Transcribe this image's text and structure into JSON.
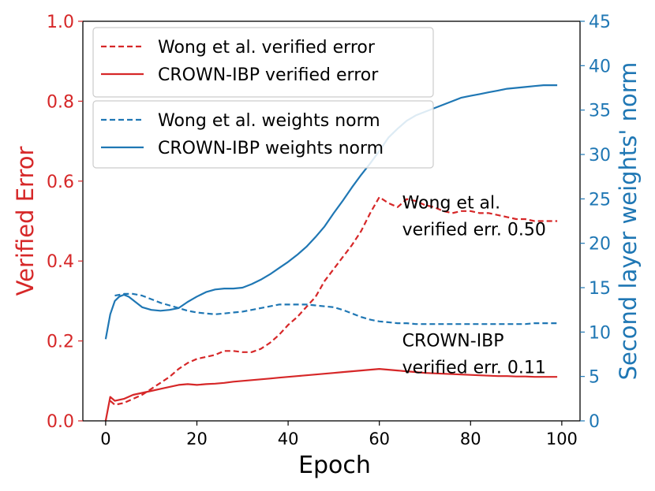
{
  "chart_data": {
    "type": "line",
    "xlabel": "Epoch",
    "ylabel_left": "Verified Error",
    "ylabel_right": "Second layer weights' norm",
    "xlim": [
      -5,
      104
    ],
    "ylim_left": [
      0.0,
      1.0
    ],
    "ylim_right": [
      0,
      45
    ],
    "xticks": [
      "0",
      "20",
      "40",
      "60",
      "80",
      "100"
    ],
    "yticks_left": [
      "0.0",
      "0.2",
      "0.4",
      "0.6",
      "0.8",
      "1.0"
    ],
    "yticks_right": [
      "0",
      "5",
      "10",
      "15",
      "20",
      "25",
      "30",
      "35",
      "40",
      "45"
    ],
    "grid": false,
    "colors": {
      "red": "#d62728",
      "blue": "#1f77b4"
    },
    "legends": [
      {
        "placement": "top-left",
        "entries": [
          "Wong et al. verified error",
          "CROWN-IBP verified error"
        ]
      },
      {
        "placement": "top-left",
        "entries": [
          "Wong et al. weights norm",
          "CROWN-IBP weights norm"
        ]
      }
    ],
    "annotations": [
      {
        "lines": [
          "Wong et al.",
          "verified err. 0.50"
        ],
        "x": 65,
        "y": 0.48
      },
      {
        "lines": [
          "CROWN-IBP",
          "verified err. 0.11"
        ],
        "x": 65,
        "y": 0.135
      }
    ],
    "series": [
      {
        "name": "Wong et al. verified error",
        "axis": "left",
        "color": "#d62728",
        "style": "dashed",
        "x": [
          1,
          2,
          4,
          6,
          8,
          10,
          12,
          14,
          16,
          18,
          20,
          22,
          24,
          26,
          28,
          30,
          32,
          34,
          36,
          38,
          40,
          42,
          44,
          46,
          48,
          50,
          52,
          54,
          56,
          58,
          60,
          62,
          64,
          66,
          68,
          70,
          72,
          74,
          76,
          78,
          80,
          82,
          84,
          86,
          88,
          90,
          92,
          94,
          96,
          98,
          99
        ],
        "y": [
          0.05,
          0.04,
          0.045,
          0.055,
          0.065,
          0.08,
          0.095,
          0.11,
          0.13,
          0.145,
          0.155,
          0.16,
          0.165,
          0.175,
          0.175,
          0.172,
          0.172,
          0.18,
          0.195,
          0.215,
          0.24,
          0.26,
          0.285,
          0.31,
          0.35,
          0.38,
          0.41,
          0.44,
          0.475,
          0.52,
          0.56,
          0.545,
          0.535,
          0.555,
          0.55,
          0.54,
          0.535,
          0.525,
          0.52,
          0.525,
          0.525,
          0.52,
          0.52,
          0.515,
          0.51,
          0.505,
          0.505,
          0.5,
          0.5,
          0.5,
          0.5
        ]
      },
      {
        "name": "CROWN-IBP verified error",
        "axis": "left",
        "color": "#d62728",
        "style": "solid",
        "x": [
          0,
          1,
          2,
          4,
          6,
          8,
          10,
          12,
          14,
          16,
          18,
          20,
          22,
          24,
          26,
          28,
          30,
          32,
          34,
          36,
          38,
          40,
          42,
          44,
          46,
          48,
          50,
          52,
          54,
          56,
          58,
          60,
          62,
          64,
          66,
          68,
          70,
          72,
          74,
          76,
          78,
          80,
          82,
          84,
          86,
          88,
          90,
          92,
          94,
          96,
          98,
          99
        ],
        "y": [
          0.0,
          0.06,
          0.05,
          0.055,
          0.065,
          0.07,
          0.075,
          0.08,
          0.085,
          0.09,
          0.092,
          0.09,
          0.092,
          0.093,
          0.095,
          0.098,
          0.1,
          0.102,
          0.104,
          0.106,
          0.108,
          0.11,
          0.112,
          0.114,
          0.116,
          0.118,
          0.12,
          0.122,
          0.124,
          0.126,
          0.128,
          0.13,
          0.128,
          0.126,
          0.124,
          0.122,
          0.12,
          0.119,
          0.118,
          0.117,
          0.116,
          0.115,
          0.114,
          0.113,
          0.112,
          0.112,
          0.111,
          0.111,
          0.11,
          0.11,
          0.11,
          0.11
        ]
      },
      {
        "name": "Wong et al. weights norm",
        "axis": "right",
        "color": "#1f77b4",
        "style": "dashed",
        "x": [
          2,
          4,
          6,
          8,
          10,
          12,
          14,
          16,
          18,
          20,
          22,
          24,
          26,
          28,
          30,
          32,
          34,
          36,
          38,
          40,
          42,
          44,
          46,
          48,
          50,
          52,
          54,
          56,
          58,
          60,
          62,
          64,
          66,
          68,
          70,
          72,
          74,
          76,
          78,
          80,
          82,
          84,
          86,
          88,
          90,
          92,
          94,
          96,
          98,
          99
        ],
        "y": [
          14.1,
          14.3,
          14.3,
          14.1,
          13.7,
          13.3,
          13.0,
          12.7,
          12.4,
          12.2,
          12.1,
          12.0,
          12.1,
          12.2,
          12.3,
          12.5,
          12.7,
          12.9,
          13.1,
          13.1,
          13.1,
          13.1,
          13.0,
          12.9,
          12.8,
          12.5,
          12.1,
          11.7,
          11.4,
          11.2,
          11.1,
          11.0,
          11.0,
          10.9,
          10.9,
          10.9,
          10.9,
          10.9,
          10.9,
          10.9,
          10.9,
          10.9,
          10.9,
          10.9,
          10.9,
          10.9,
          11.0,
          11.0,
          11.0,
          11.0
        ]
      },
      {
        "name": "CROWN-IBP weights norm",
        "axis": "right",
        "color": "#1f77b4",
        "style": "solid",
        "x": [
          0,
          1,
          2,
          3,
          4,
          5,
          6,
          8,
          10,
          12,
          14,
          16,
          18,
          20,
          22,
          24,
          26,
          28,
          30,
          32,
          34,
          36,
          38,
          40,
          42,
          44,
          46,
          48,
          50,
          52,
          54,
          56,
          58,
          60,
          62,
          64,
          66,
          68,
          70,
          72,
          74,
          76,
          78,
          80,
          82,
          84,
          86,
          88,
          90,
          92,
          94,
          96,
          98,
          99
        ],
        "y": [
          9.2,
          12.0,
          13.5,
          14.0,
          14.2,
          14.0,
          13.6,
          12.8,
          12.5,
          12.4,
          12.5,
          12.7,
          13.4,
          14.0,
          14.5,
          14.8,
          14.9,
          14.9,
          15.0,
          15.4,
          15.9,
          16.5,
          17.2,
          17.9,
          18.7,
          19.6,
          20.7,
          21.9,
          23.4,
          24.8,
          26.3,
          27.7,
          29.0,
          30.4,
          31.9,
          32.9,
          33.8,
          34.4,
          34.8,
          35.2,
          35.6,
          36.0,
          36.4,
          36.6,
          36.8,
          37.0,
          37.2,
          37.4,
          37.5,
          37.6,
          37.7,
          37.8,
          37.8,
          37.8
        ]
      }
    ]
  }
}
